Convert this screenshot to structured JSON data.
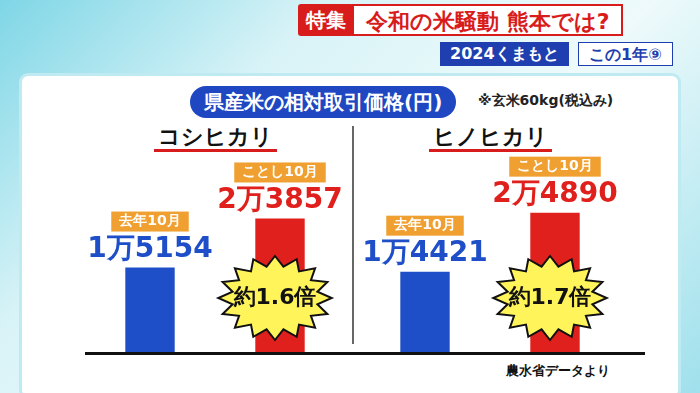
{
  "header": {
    "tag": "特集",
    "headline": "令和の米騒動 熊本では?",
    "series_tag": "2024くまもと",
    "episode": "この1年⑨"
  },
  "title": "県産米の相対取引価格(円)",
  "note": "※玄米60kg(税込み)",
  "source": "農水省データより",
  "chart_data": [
    {
      "type": "bar",
      "title": "コシヒカリ",
      "categories": [
        "去年10月",
        "ことし10月"
      ],
      "values": [
        15154,
        23857
      ],
      "value_labels": [
        "1万5154",
        "2万3857"
      ],
      "colors": [
        "#1f4fc8",
        "#e0201c"
      ],
      "ylim": [
        0,
        36000
      ],
      "grid": false,
      "tick_labels": false,
      "data_labels": true,
      "annotation": "約1.6倍"
    },
    {
      "type": "bar",
      "title": "ヒノヒカリ",
      "categories": [
        "去年10月",
        "ことし10月"
      ],
      "values": [
        14421,
        24890
      ],
      "value_labels": [
        "1万4421",
        "2万4890"
      ],
      "colors": [
        "#1f4fc8",
        "#e0201c"
      ],
      "ylim": [
        0,
        36000
      ],
      "grid": false,
      "tick_labels": false,
      "data_labels": true,
      "annotation": "約1.7倍"
    }
  ]
}
